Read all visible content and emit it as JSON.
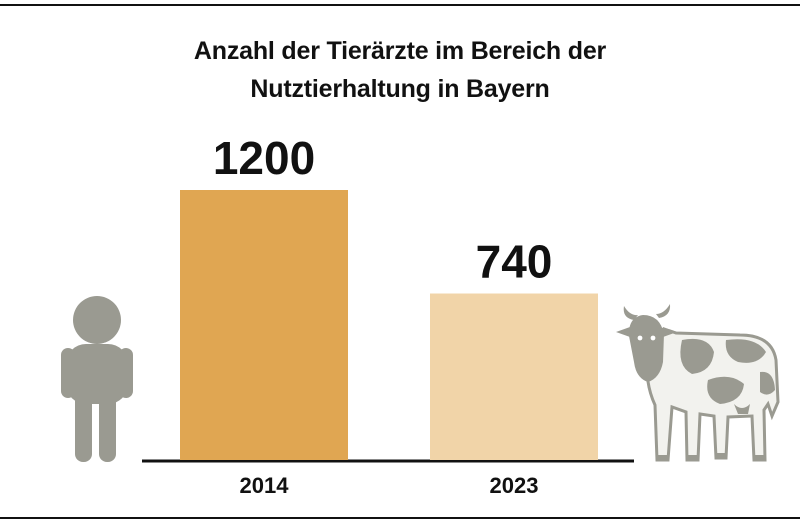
{
  "chart_data": {
    "type": "bar",
    "title_lines": [
      "Anzahl der Tierärzte im Bereich der",
      "Nutztierhaltung in Bayern"
    ],
    "categories": [
      "2014",
      "2023"
    ],
    "values": [
      1200,
      740
    ],
    "data_labels": [
      "1200",
      "740"
    ],
    "bar_colors": [
      "#E0A652",
      "#F1D4A8"
    ],
    "ylim": [
      0,
      1200
    ],
    "grid": false,
    "legend": "none"
  },
  "colors": {
    "rule": "#111111",
    "icon_gray": "#9A9A91",
    "text": "#111111"
  },
  "icons": [
    "person-icon",
    "cow-icon"
  ]
}
